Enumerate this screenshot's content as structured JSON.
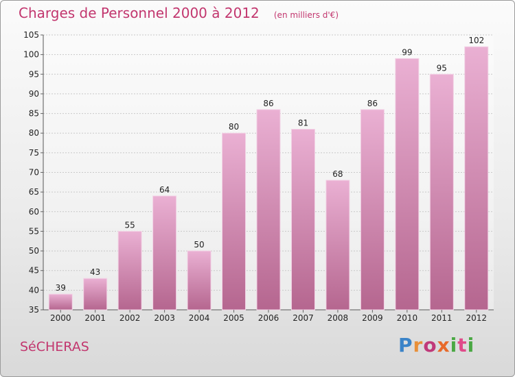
{
  "header": {
    "title": "Charges de Personnel 2000 à 2012",
    "unit": "(en milliers d'€)"
  },
  "commune": "SéCHERAS",
  "logo": {
    "text": "Proxiti",
    "colors": [
      "#3a83c8",
      "#e8903a",
      "#c0397a",
      "#e86a2a",
      "#4aa843",
      "#e04b8a",
      "#4aa843"
    ]
  },
  "colors": {
    "title": "#c2366e",
    "bar_top": "#eab0d3",
    "bar_bottom": "#b5668f",
    "grid": "#c8c8c8"
  },
  "chart_data": {
    "type": "bar",
    "categories": [
      "2000",
      "2001",
      "2002",
      "2003",
      "2004",
      "2005",
      "2006",
      "2007",
      "2008",
      "2009",
      "2010",
      "2011",
      "2012"
    ],
    "values": [
      39,
      43,
      55,
      64,
      50,
      80,
      86,
      81,
      68,
      86,
      99,
      95,
      102
    ],
    "ylim": [
      35,
      105
    ],
    "yticks": [
      35,
      40,
      45,
      50,
      55,
      60,
      65,
      70,
      75,
      80,
      85,
      90,
      95,
      100,
      105
    ],
    "grid": true
  }
}
